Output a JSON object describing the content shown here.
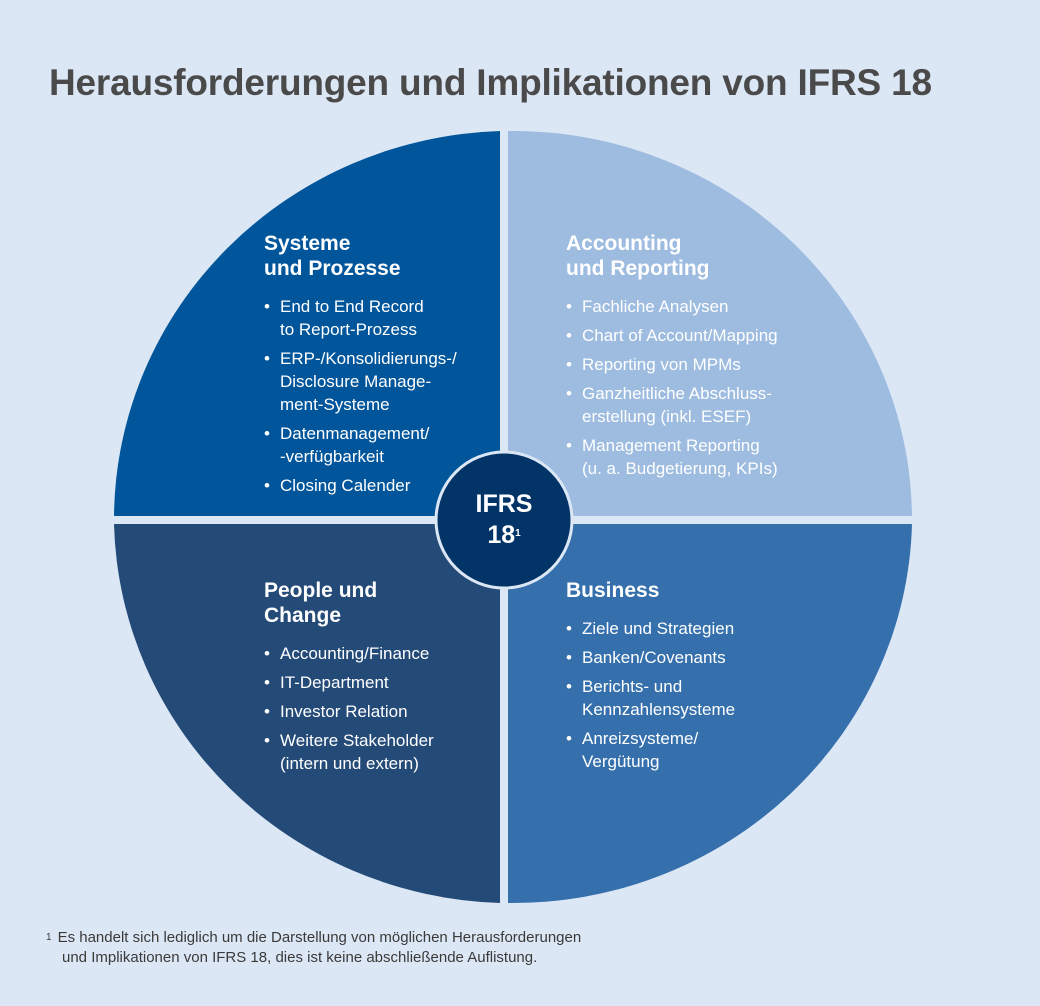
{
  "title": "Herausforderungen und Implikationen von IFRS 18",
  "center": {
    "line1": "IFRS",
    "line2": "18",
    "footnote_mark": "1"
  },
  "colors": {
    "background": "#dce7f5",
    "top_left": "#00559b",
    "top_right": "#9dbce0",
    "bottom_left": "#244a78",
    "bottom_right": "#3570ad",
    "center": "#023468"
  },
  "quadrants": {
    "top_left": {
      "heading": [
        "Systeme",
        "und Prozesse"
      ],
      "items": [
        [
          "End to End Record",
          "to Report-Prozess"
        ],
        [
          "ERP-/Konsolidierungs-/",
          "Disclosure Manage-",
          "ment-Systeme"
        ],
        [
          "Datenmanagement/",
          "-verfügbarkeit"
        ],
        [
          "Closing Calender"
        ]
      ]
    },
    "top_right": {
      "heading": [
        "Accounting",
        "und Reporting"
      ],
      "items": [
        [
          "Fachliche Analysen"
        ],
        [
          "Chart of Account/Mapping"
        ],
        [
          "Reporting von MPMs"
        ],
        [
          "Ganzheitliche Abschluss-",
          "erstellung (inkl. ESEF)"
        ],
        [
          "Management Reporting",
          "(u. a. Budgetierung, KPIs)"
        ]
      ]
    },
    "bottom_left": {
      "heading": [
        "People und",
        "Change"
      ],
      "items": [
        [
          "Accounting/Finance"
        ],
        [
          "IT-Department"
        ],
        [
          "Investor Relation"
        ],
        [
          "Weitere Stakeholder",
          "(intern und extern)"
        ]
      ]
    },
    "bottom_right": {
      "heading": [
        "Business"
      ],
      "items": [
        [
          "Ziele und Strategien"
        ],
        [
          "Banken/Covenants"
        ],
        [
          "Berichts- und",
          "Kennzahlensysteme"
        ],
        [
          "Anreizsysteme/",
          "Vergütung"
        ]
      ]
    }
  },
  "footnote": {
    "mark": "1",
    "lines": [
      "Es handelt sich lediglich um die Darstellung von möglichen Herausforderungen",
      "und Implikationen von IFRS 18, dies ist keine abschließende Auflistung."
    ]
  }
}
